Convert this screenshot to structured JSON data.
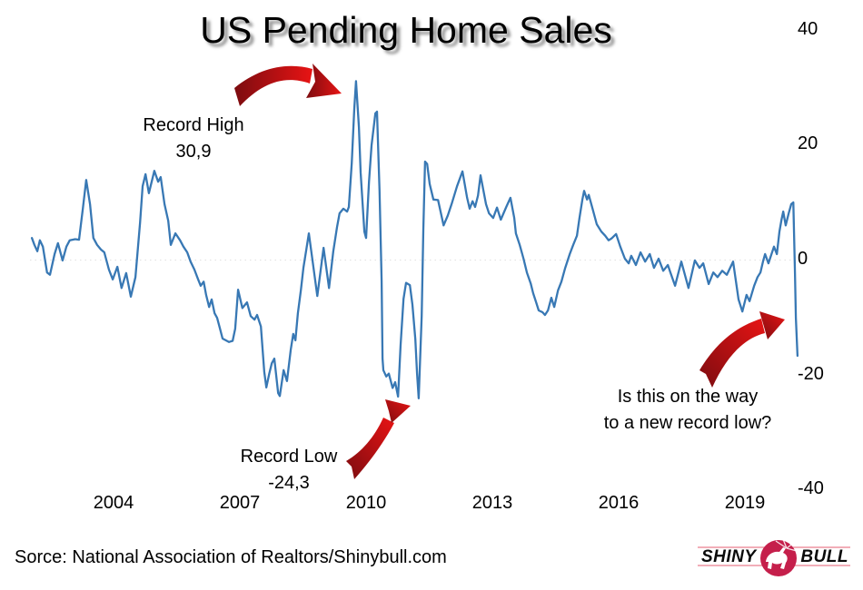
{
  "chart": {
    "title": "US Pending Home Sales",
    "source": "Sorce: National Association of Realtors/Shinybull.com",
    "line_color": "#3878b4",
    "arrow_dark_red": "#7c0c10",
    "arrow_bright_red": "#e81414",
    "annotations": {
      "record_high": {
        "line1": "Record High",
        "line2": "30,9"
      },
      "record_low": {
        "line1": "Record Low",
        "line2": "-24,3"
      },
      "question": {
        "line1": "Is this on the way",
        "line2": "to a new record low?"
      }
    },
    "logo": {
      "word1": "SHINY",
      "word2": "BULL",
      "accent": "#c51f4b",
      "line_color": "#ef9aa6"
    }
  },
  "chart_data": {
    "type": "line",
    "title": "US Pending Home Sales",
    "xlabel": "",
    "ylabel": "",
    "x_ticks": [
      2004,
      2007,
      2010,
      2013,
      2016,
      2019
    ],
    "y_ticks": [
      40,
      20,
      0,
      -20,
      -40
    ],
    "xlim": [
      2002,
      2020.4
    ],
    "ylim": [
      -40,
      40
    ],
    "y_axis_side": "right",
    "legend": "none",
    "grid": "faint dotted line at zero only",
    "record_high_value": 30.9,
    "record_low_value": -24.3,
    "series": [
      {
        "name": "US Pending Home Sales, % change",
        "points": [
          [
            2002.06,
            3.6
          ],
          [
            2002.12,
            2.4
          ],
          [
            2002.19,
            1.3
          ],
          [
            2002.25,
            3.2
          ],
          [
            2002.32,
            2.1
          ],
          [
            2002.42,
            -2.4
          ],
          [
            2002.49,
            -2.8
          ],
          [
            2002.6,
            0.8
          ],
          [
            2002.68,
            2.7
          ],
          [
            2002.79,
            -0.3
          ],
          [
            2002.88,
            2.1
          ],
          [
            2002.96,
            3.2
          ],
          [
            2003.09,
            3.4
          ],
          [
            2003.18,
            3.3
          ],
          [
            2003.27,
            8.7
          ],
          [
            2003.35,
            13.7
          ],
          [
            2003.44,
            9.5
          ],
          [
            2003.52,
            3.6
          ],
          [
            2003.61,
            2.4
          ],
          [
            2003.7,
            1.6
          ],
          [
            2003.78,
            1.1
          ],
          [
            2003.89,
            -1.9
          ],
          [
            2003.98,
            -3.6
          ],
          [
            2004.09,
            -1.4
          ],
          [
            2004.19,
            -5.1
          ],
          [
            2004.3,
            -2.5
          ],
          [
            2004.41,
            -6.6
          ],
          [
            2004.52,
            -3.2
          ],
          [
            2004.63,
            6.3
          ],
          [
            2004.69,
            12.6
          ],
          [
            2004.76,
            14.7
          ],
          [
            2004.84,
            11.4
          ],
          [
            2004.97,
            15.3
          ],
          [
            2005.06,
            13.4
          ],
          [
            2005.12,
            14.2
          ],
          [
            2005.21,
            9.5
          ],
          [
            2005.3,
            6.6
          ],
          [
            2005.36,
            2.4
          ],
          [
            2005.47,
            4.4
          ],
          [
            2005.58,
            3.2
          ],
          [
            2005.66,
            2.1
          ],
          [
            2005.75,
            1.1
          ],
          [
            2005.83,
            -0.5
          ],
          [
            2005.92,
            -1.9
          ],
          [
            2006.01,
            -3.6
          ],
          [
            2006.07,
            -4.7
          ],
          [
            2006.14,
            -4.0
          ],
          [
            2006.2,
            -6.3
          ],
          [
            2006.27,
            -8.4
          ],
          [
            2006.33,
            -7.1
          ],
          [
            2006.4,
            -9.5
          ],
          [
            2006.46,
            -10.3
          ],
          [
            2006.53,
            -12.2
          ],
          [
            2006.59,
            -13.9
          ],
          [
            2006.74,
            -14.5
          ],
          [
            2006.83,
            -14.3
          ],
          [
            2006.89,
            -12.2
          ],
          [
            2006.96,
            -5.4
          ],
          [
            2007.06,
            -8.6
          ],
          [
            2007.17,
            -7.6
          ],
          [
            2007.26,
            -10.0
          ],
          [
            2007.35,
            -10.6
          ],
          [
            2007.41,
            -9.8
          ],
          [
            2007.5,
            -11.8
          ],
          [
            2007.58,
            -19.7
          ],
          [
            2007.63,
            -22.4
          ],
          [
            2007.7,
            -20.0
          ],
          [
            2007.76,
            -18.2
          ],
          [
            2007.82,
            -17.4
          ],
          [
            2007.91,
            -23.4
          ],
          [
            2007.95,
            -23.9
          ],
          [
            2008.04,
            -19.4
          ],
          [
            2008.12,
            -21.3
          ],
          [
            2008.21,
            -15.8
          ],
          [
            2008.27,
            -13.1
          ],
          [
            2008.32,
            -14.2
          ],
          [
            2008.38,
            -9.5
          ],
          [
            2008.45,
            -5.5
          ],
          [
            2008.51,
            -1.6
          ],
          [
            2008.58,
            1.6
          ],
          [
            2008.64,
            4.4
          ],
          [
            2008.84,
            -6.5
          ],
          [
            2008.99,
            1.9
          ],
          [
            2009.12,
            -5.1
          ],
          [
            2009.22,
            1.3
          ],
          [
            2009.31,
            5.5
          ],
          [
            2009.37,
            7.9
          ],
          [
            2009.46,
            8.7
          ],
          [
            2009.55,
            8.2
          ],
          [
            2009.59,
            9.0
          ],
          [
            2009.66,
            16.6
          ],
          [
            2009.72,
            26.1
          ],
          [
            2009.76,
            30.9
          ],
          [
            2009.83,
            22.9
          ],
          [
            2009.87,
            15.0
          ],
          [
            2009.96,
            4.7
          ],
          [
            2010.0,
            3.6
          ],
          [
            2010.07,
            13.4
          ],
          [
            2010.13,
            19.7
          ],
          [
            2010.22,
            25.3
          ],
          [
            2010.26,
            25.6
          ],
          [
            2010.32,
            11.8
          ],
          [
            2010.37,
            -3.9
          ],
          [
            2010.39,
            -17.4
          ],
          [
            2010.41,
            -19.4
          ],
          [
            2010.48,
            -20.5
          ],
          [
            2010.54,
            -20.0
          ],
          [
            2010.63,
            -22.5
          ],
          [
            2010.69,
            -21.5
          ],
          [
            2010.76,
            -24.0
          ],
          [
            2010.82,
            -15.0
          ],
          [
            2010.89,
            -7.0
          ],
          [
            2010.95,
            -4.2
          ],
          [
            2011.04,
            -4.6
          ],
          [
            2011.1,
            -8.0
          ],
          [
            2011.17,
            -14.0
          ],
          [
            2011.21,
            -20.0
          ],
          [
            2011.25,
            -24.3
          ],
          [
            2011.32,
            -10.0
          ],
          [
            2011.36,
            5.0
          ],
          [
            2011.4,
            16.9
          ],
          [
            2011.45,
            16.5
          ],
          [
            2011.51,
            13.0
          ],
          [
            2011.6,
            10.3
          ],
          [
            2011.71,
            10.2
          ],
          [
            2011.84,
            5.8
          ],
          [
            2011.94,
            7.5
          ],
          [
            2012.03,
            9.5
          ],
          [
            2012.16,
            12.6
          ],
          [
            2012.29,
            15.2
          ],
          [
            2012.4,
            10.6
          ],
          [
            2012.46,
            8.7
          ],
          [
            2012.53,
            10.0
          ],
          [
            2012.59,
            9.0
          ],
          [
            2012.66,
            11.0
          ],
          [
            2012.72,
            14.5
          ],
          [
            2012.85,
            9.5
          ],
          [
            2012.92,
            7.9
          ],
          [
            2013.02,
            7.1
          ],
          [
            2013.11,
            8.9
          ],
          [
            2013.2,
            6.8
          ],
          [
            2013.33,
            9.0
          ],
          [
            2013.43,
            10.6
          ],
          [
            2013.52,
            7.1
          ],
          [
            2013.56,
            4.4
          ],
          [
            2013.65,
            2.4
          ],
          [
            2013.74,
            0.0
          ],
          [
            2013.82,
            -2.4
          ],
          [
            2013.91,
            -4.3
          ],
          [
            2013.97,
            -6.0
          ],
          [
            2014.04,
            -7.6
          ],
          [
            2014.1,
            -9.0
          ],
          [
            2014.19,
            -9.3
          ],
          [
            2014.25,
            -9.8
          ],
          [
            2014.32,
            -9.0
          ],
          [
            2014.4,
            -6.8
          ],
          [
            2014.47,
            -8.4
          ],
          [
            2014.56,
            -5.5
          ],
          [
            2014.64,
            -4.0
          ],
          [
            2014.73,
            -1.6
          ],
          [
            2014.84,
            0.8
          ],
          [
            2014.92,
            2.4
          ],
          [
            2015.01,
            4.0
          ],
          [
            2015.07,
            7.1
          ],
          [
            2015.14,
            10.3
          ],
          [
            2015.18,
            11.8
          ],
          [
            2015.25,
            10.3
          ],
          [
            2015.29,
            11.1
          ],
          [
            2015.38,
            8.7
          ],
          [
            2015.48,
            6.0
          ],
          [
            2015.59,
            4.7
          ],
          [
            2015.68,
            4.0
          ],
          [
            2015.76,
            3.2
          ],
          [
            2015.83,
            3.5
          ],
          [
            2015.94,
            4.3
          ],
          [
            2016.04,
            2.1
          ],
          [
            2016.15,
            0.0
          ],
          [
            2016.24,
            -0.8
          ],
          [
            2016.3,
            0.5
          ],
          [
            2016.41,
            -1.1
          ],
          [
            2016.52,
            1.1
          ],
          [
            2016.63,
            -0.5
          ],
          [
            2016.74,
            0.8
          ],
          [
            2016.84,
            -1.6
          ],
          [
            2016.95,
            0.0
          ],
          [
            2017.06,
            -2.1
          ],
          [
            2017.17,
            -1.1
          ],
          [
            2017.23,
            -2.4
          ],
          [
            2017.34,
            -4.7
          ],
          [
            2017.49,
            -0.5
          ],
          [
            2017.66,
            -5.1
          ],
          [
            2017.81,
            -0.3
          ],
          [
            2017.92,
            -1.6
          ],
          [
            2018.01,
            -0.8
          ],
          [
            2018.14,
            -4.4
          ],
          [
            2018.25,
            -2.4
          ],
          [
            2018.35,
            -3.2
          ],
          [
            2018.46,
            -2.1
          ],
          [
            2018.57,
            -2.8
          ],
          [
            2018.72,
            -0.5
          ],
          [
            2018.85,
            -7.1
          ],
          [
            2018.94,
            -9.2
          ],
          [
            2019.04,
            -6.3
          ],
          [
            2019.11,
            -7.4
          ],
          [
            2019.22,
            -4.7
          ],
          [
            2019.3,
            -3.2
          ],
          [
            2019.37,
            -2.4
          ],
          [
            2019.43,
            -0.5
          ],
          [
            2019.48,
            0.8
          ],
          [
            2019.56,
            -0.8
          ],
          [
            2019.69,
            2.1
          ],
          [
            2019.76,
            0.8
          ],
          [
            2019.82,
            4.7
          ],
          [
            2019.87,
            6.8
          ],
          [
            2019.91,
            8.2
          ],
          [
            2019.97,
            5.8
          ],
          [
            2020.04,
            7.9
          ],
          [
            2020.1,
            9.5
          ],
          [
            2020.15,
            9.8
          ],
          [
            2020.19,
            -2.4
          ],
          [
            2020.21,
            -10.3
          ],
          [
            2020.25,
            -16.9
          ]
        ]
      }
    ]
  }
}
